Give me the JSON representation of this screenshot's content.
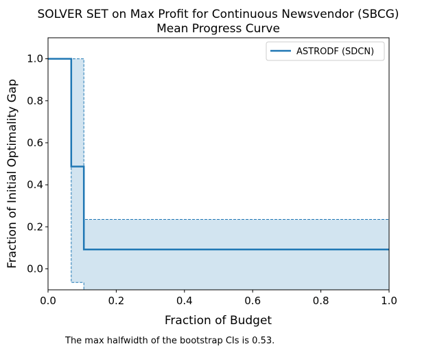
{
  "chart_data": {
    "type": "line",
    "title": "SOLVER SET on Max Profit for Continuous Newsvendor (SBCG)",
    "subtitle": "Mean Progress Curve",
    "xlabel": "Fraction of Budget",
    "ylabel": "Fraction of Initial Optimality Gap",
    "xlim": [
      0.0,
      1.0
    ],
    "ylim": [
      -0.1,
      1.1
    ],
    "xticks": [
      "0.0",
      "0.2",
      "0.4",
      "0.6",
      "0.8",
      "1.0"
    ],
    "yticks": [
      "0.0",
      "0.2",
      "0.4",
      "0.6",
      "0.8",
      "1.0"
    ],
    "grid": false,
    "legend_position": "top-right",
    "series": [
      {
        "name": "ASTRODF (SDCN)",
        "color": "#1f77b4",
        "step": "post",
        "x": [
          0.0,
          0.068,
          0.105,
          1.0
        ],
        "y": [
          1.0,
          0.487,
          0.092,
          0.092
        ],
        "ci_upper": [
          1.0,
          1.0,
          0.235,
          0.235
        ],
        "ci_lower": [
          1.0,
          -0.065,
          -0.1,
          -0.1
        ]
      }
    ],
    "annotation": "The max halfwidth of the bootstrap CIs is 0.53."
  }
}
